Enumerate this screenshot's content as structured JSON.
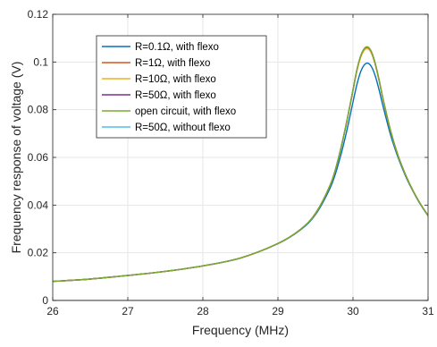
{
  "chart_data": {
    "type": "line",
    "title": "",
    "xlabel": "Frequency (MHz)",
    "ylabel": "Frequency response of voltage (V)",
    "xlim": [
      26,
      31
    ],
    "ylim": [
      0,
      0.12
    ],
    "xticks": [
      "26",
      "27",
      "28",
      "29",
      "30",
      "31"
    ],
    "yticks": [
      "0",
      "0.02",
      "0.04",
      "0.06",
      "0.08",
      "0.1",
      "0.12"
    ],
    "grid": true,
    "legend_position": "top-left",
    "series": [
      {
        "name": "R=0.1Ω, with flexo",
        "color": "#0072BD",
        "x": [
          26,
          26.5,
          27,
          27.5,
          28,
          28.5,
          29,
          29.3,
          29.5,
          29.7,
          29.8,
          29.9,
          30,
          30.05,
          30.1,
          30.15,
          30.2,
          30.25,
          30.3,
          30.35,
          30.4,
          30.5,
          30.6,
          30.7,
          30.8,
          30.9,
          31
        ],
        "y": [
          0.008,
          0.009,
          0.0105,
          0.0122,
          0.0145,
          0.0178,
          0.0238,
          0.0296,
          0.036,
          0.0475,
          0.0567,
          0.0688,
          0.0832,
          0.0903,
          0.0957,
          0.0988,
          0.0995,
          0.0978,
          0.0938,
          0.088,
          0.0815,
          0.0695,
          0.06,
          0.0522,
          0.0458,
          0.0402,
          0.0355
        ]
      },
      {
        "name": "R=1Ω, with flexo",
        "color": "#D95319",
        "x": [
          26,
          26.5,
          27,
          27.5,
          28,
          28.5,
          29,
          29.3,
          29.5,
          29.7,
          29.8,
          29.9,
          30,
          30.05,
          30.1,
          30.15,
          30.2,
          30.25,
          30.3,
          30.35,
          30.4,
          30.5,
          30.6,
          30.7,
          30.8,
          30.9,
          31
        ],
        "y": [
          0.008,
          0.009,
          0.0105,
          0.0122,
          0.0145,
          0.0178,
          0.0239,
          0.0298,
          0.0365,
          0.0487,
          0.0589,
          0.0724,
          0.0882,
          0.0963,
          0.1022,
          0.1054,
          0.106,
          0.1038,
          0.0988,
          0.092,
          0.0845,
          0.0712,
          0.0608,
          0.0527,
          0.046,
          0.0404,
          0.0356
        ]
      },
      {
        "name": "R=10Ω, with flexo",
        "color": "#EDB120",
        "x": [
          26,
          26.5,
          27,
          27.5,
          28,
          28.5,
          29,
          29.3,
          29.5,
          29.7,
          29.8,
          29.9,
          30,
          30.05,
          30.1,
          30.15,
          30.2,
          30.25,
          30.3,
          30.35,
          30.4,
          30.5,
          30.6,
          30.7,
          30.8,
          30.9,
          31
        ],
        "y": [
          0.008,
          0.009,
          0.0105,
          0.0122,
          0.0145,
          0.0178,
          0.0239,
          0.0298,
          0.0364,
          0.0486,
          0.0588,
          0.0722,
          0.0879,
          0.0959,
          0.1017,
          0.1049,
          0.1055,
          0.1033,
          0.0984,
          0.0917,
          0.0843,
          0.0711,
          0.0607,
          0.0527,
          0.046,
          0.0404,
          0.0356
        ]
      },
      {
        "name": "R=50Ω, with flexo",
        "color": "#7E2F8E",
        "x": [
          26,
          26.5,
          27,
          27.5,
          28,
          28.5,
          29,
          29.3,
          29.5,
          29.7,
          29.8,
          29.9,
          30,
          30.05,
          30.1,
          30.15,
          30.2,
          30.25,
          30.3,
          30.35,
          30.4,
          30.5,
          30.6,
          30.7,
          30.8,
          30.9,
          31
        ],
        "y": [
          0.008,
          0.009,
          0.0105,
          0.0122,
          0.0145,
          0.0178,
          0.0239,
          0.0298,
          0.0365,
          0.0487,
          0.0589,
          0.0725,
          0.0883,
          0.0964,
          0.1023,
          0.1056,
          0.1062,
          0.1039,
          0.0989,
          0.0921,
          0.0846,
          0.0713,
          0.0608,
          0.0527,
          0.046,
          0.0404,
          0.0356
        ]
      },
      {
        "name": "open circuit, with flexo",
        "color": "#77AC30",
        "x": [
          26,
          26.5,
          27,
          27.5,
          28,
          28.5,
          29,
          29.3,
          29.5,
          29.7,
          29.8,
          29.9,
          30,
          30.05,
          30.1,
          30.15,
          30.2,
          30.25,
          30.3,
          30.35,
          30.4,
          30.5,
          30.6,
          30.7,
          30.8,
          30.9,
          31
        ],
        "y": [
          0.008,
          0.009,
          0.0105,
          0.0122,
          0.0145,
          0.0178,
          0.0239,
          0.0298,
          0.0365,
          0.0487,
          0.0589,
          0.0725,
          0.0883,
          0.0964,
          0.1023,
          0.1056,
          0.1063,
          0.104,
          0.099,
          0.0922,
          0.0846,
          0.0713,
          0.0608,
          0.0527,
          0.046,
          0.0404,
          0.0356
        ]
      },
      {
        "name": "R=50Ω, without flexo",
        "color": "#4DBEEE",
        "x": [
          26,
          31
        ],
        "y": [
          0,
          0
        ]
      }
    ]
  }
}
